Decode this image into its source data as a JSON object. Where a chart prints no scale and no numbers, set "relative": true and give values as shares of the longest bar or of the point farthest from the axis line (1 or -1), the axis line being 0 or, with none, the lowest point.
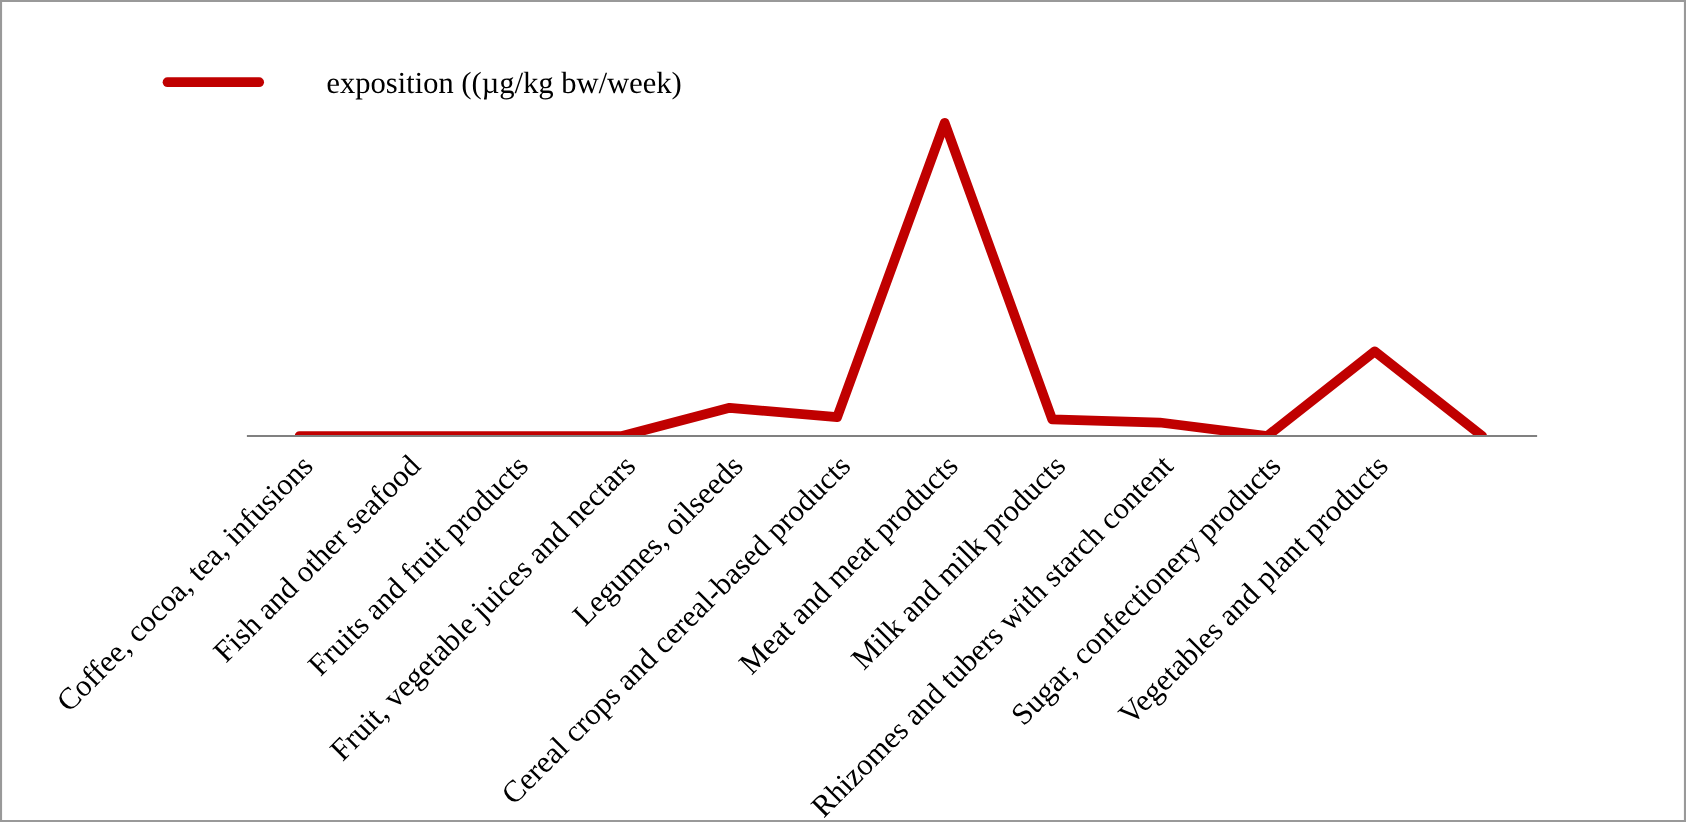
{
  "chart_data": {
    "type": "line",
    "relative": true,
    "legend": "top left",
    "grid": false,
    "marker": "none",
    "line_style": "solid",
    "categories": [
      "Coffee, cocoa, tea, infusions",
      "Fish and other seafood",
      "Fruits and fruit products",
      "Fruit, vegetable juices and nectars",
      "Legumes, oilseeds",
      "Cereal crops and cereal-based products",
      "Meat and meat products",
      "Milk and milk products",
      "Rhizomes and tubers with starch content",
      "Sugar, confectionery products",
      "Vegetables and plant products",
      null
    ],
    "series": [
      {
        "name": "exposition ((µg/kg bw/week)",
        "color": "#c00000",
        "values": [
          0,
          0,
          0,
          0,
          0.09,
          0.06,
          1,
          0.053,
          0.043,
          0,
          0.27,
          0
        ]
      }
    ]
  }
}
